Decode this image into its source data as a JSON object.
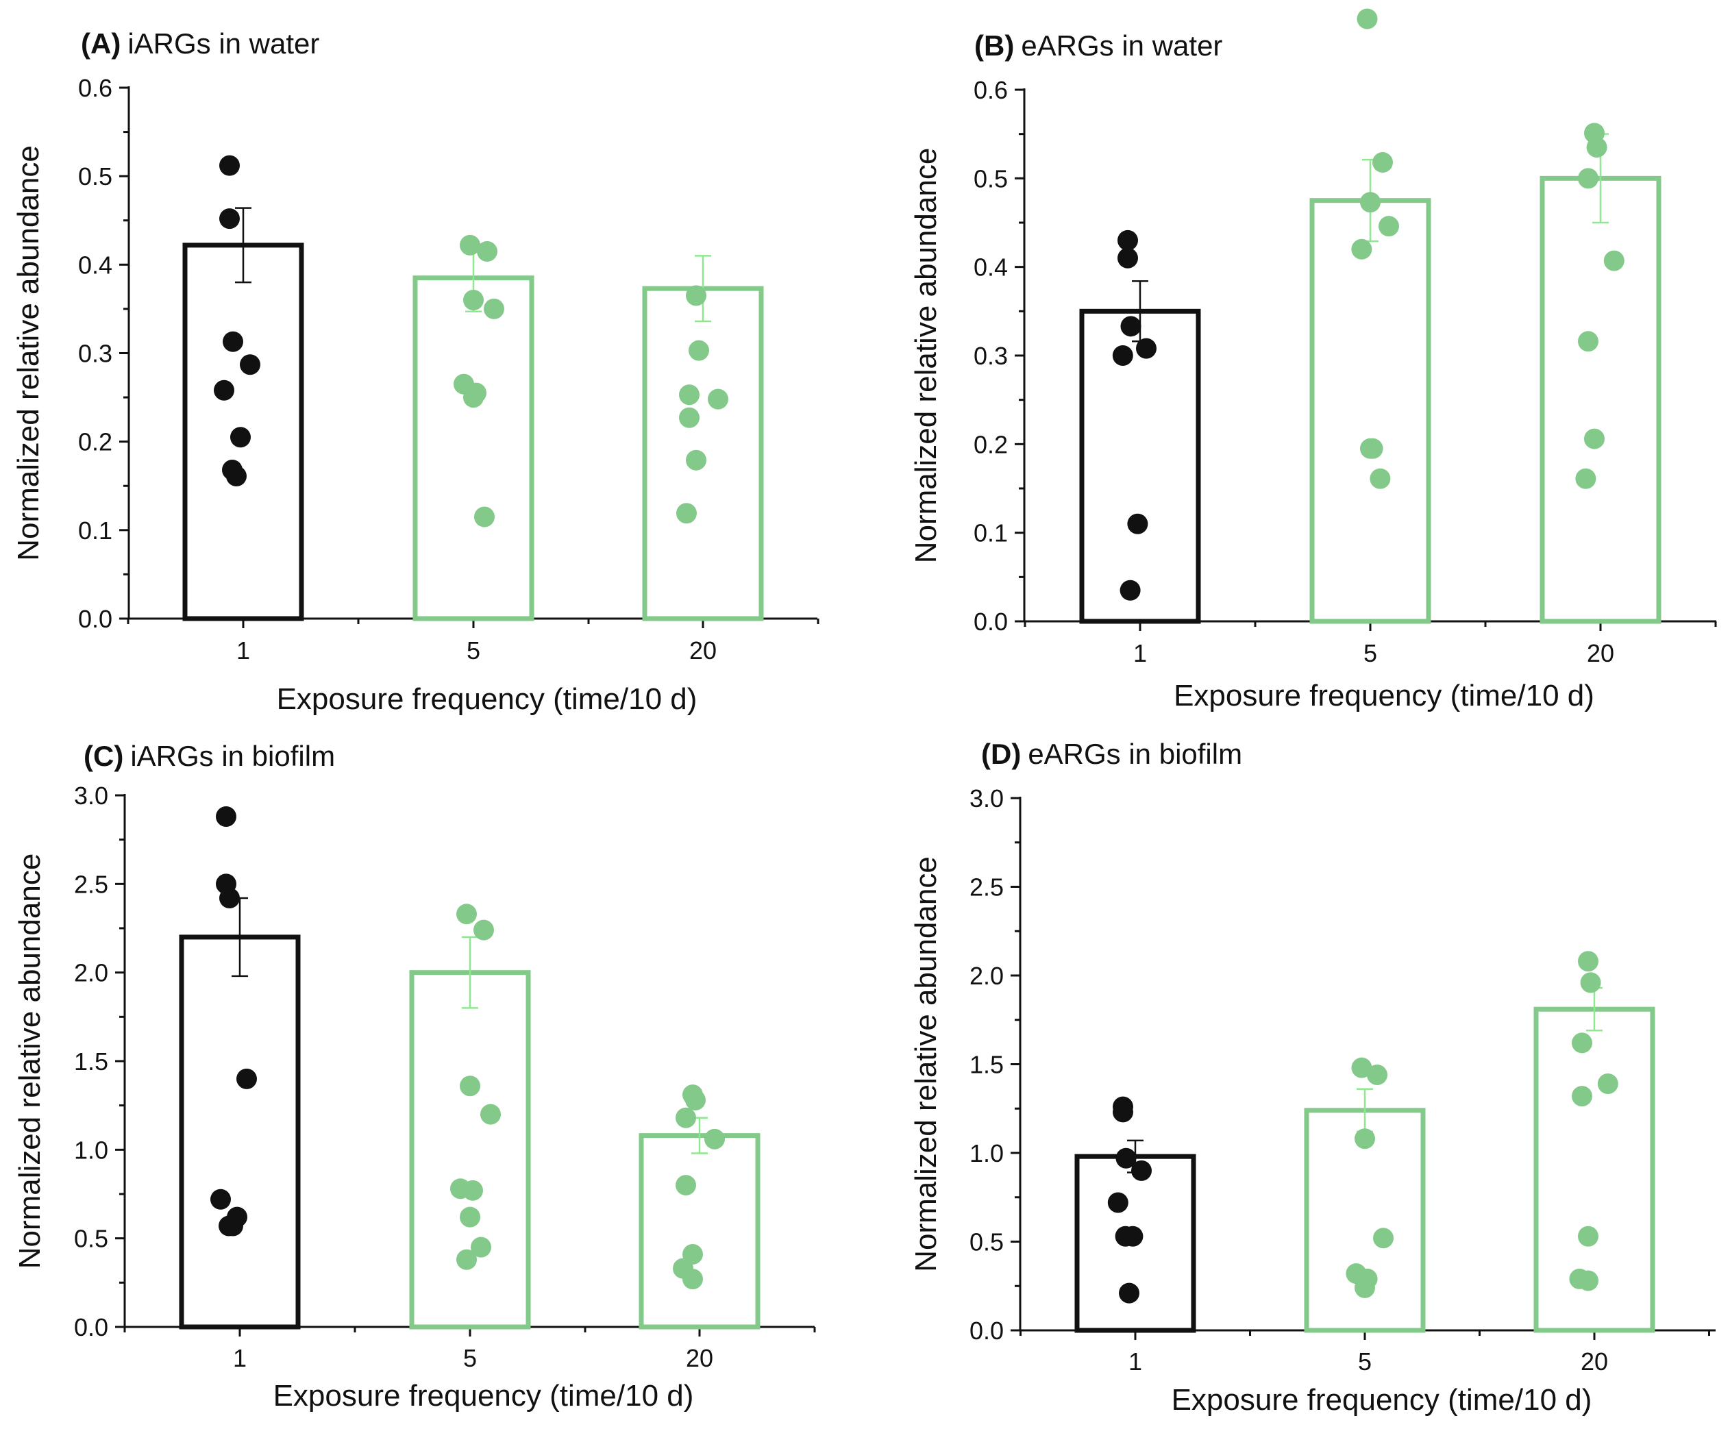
{
  "colors": {
    "black_group": "#111111",
    "green_group": "#83c98a",
    "green_errorbar": "#8fe88f"
  },
  "chart_data": [
    {
      "type": "bar",
      "panel": "(A)",
      "title": "iARGs in water",
      "xlabel": "Exposure frequency (time/10 d)",
      "ylabel": "Normalized relative abundance",
      "categories": [
        "1",
        "5",
        "20"
      ],
      "values": [
        0.422,
        0.385,
        0.373
      ],
      "error": [
        0.042,
        0.038,
        0.037
      ],
      "ylim": [
        0,
        0.6
      ],
      "yticks": [
        "0.0",
        "0.1",
        "0.2",
        "0.3",
        "0.4",
        "0.5",
        "0.6"
      ],
      "points": [
        [
          0.512,
          0.452,
          0.313,
          0.287,
          0.258,
          0.205,
          0.168,
          0.161
        ],
        [
          0.422,
          0.415,
          0.36,
          0.35,
          0.265,
          0.255,
          0.25,
          0.115
        ],
        [
          0.365,
          0.303,
          0.253,
          0.248,
          0.227,
          0.179,
          0.119
        ]
      ]
    },
    {
      "type": "bar",
      "panel": "(B)",
      "title": "eARGs in water",
      "xlabel": "Exposure frequency (time/10 d)",
      "ylabel": "Normalized relative abundance",
      "categories": [
        "1",
        "5",
        "20"
      ],
      "values": [
        0.35,
        0.475,
        0.5
      ],
      "error": [
        0.034,
        0.046,
        0.05
      ],
      "ylim": [
        0,
        0.6
      ],
      "yticks": [
        "0.0",
        "0.1",
        "0.2",
        "0.3",
        "0.4",
        "0.5",
        "0.6"
      ],
      "points": [
        [
          0.43,
          0.41,
          0.333,
          0.308,
          0.3,
          0.11,
          0.035
        ],
        [
          0.68,
          0.518,
          0.473,
          0.446,
          0.42,
          0.195,
          0.195,
          0.161
        ],
        [
          0.551,
          0.535,
          0.5,
          0.407,
          0.316,
          0.206,
          0.161
        ]
      ]
    },
    {
      "type": "bar",
      "panel": "(C)",
      "title": "iARGs in biofilm",
      "xlabel": "Exposure frequency (time/10 d)",
      "ylabel": "Normalized relative abundance",
      "categories": [
        "1",
        "5",
        "20"
      ],
      "values": [
        2.2,
        2.0,
        1.08
      ],
      "error": [
        0.22,
        0.2,
        0.1
      ],
      "ylim": [
        0,
        3.0
      ],
      "yticks": [
        "0.0",
        "0.5",
        "1.0",
        "1.5",
        "2.0",
        "2.5",
        "3.0"
      ],
      "points": [
        [
          2.88,
          2.5,
          2.42,
          1.4,
          0.72,
          0.62,
          0.57,
          0.57
        ],
        [
          2.33,
          2.24,
          1.36,
          1.2,
          0.78,
          0.77,
          0.62,
          0.45,
          0.38
        ],
        [
          1.31,
          1.28,
          1.18,
          1.06,
          0.8,
          0.41,
          0.33,
          0.27
        ]
      ]
    },
    {
      "type": "bar",
      "panel": "(D)",
      "title": "eARGs in biofilm",
      "xlabel": "Exposure frequency (time/10 d)",
      "ylabel": "Normalized relative abundance",
      "categories": [
        "1",
        "5",
        "20"
      ],
      "values": [
        0.98,
        1.24,
        1.81
      ],
      "error": [
        0.09,
        0.12,
        0.12
      ],
      "ylim": [
        0,
        3.0
      ],
      "yticks": [
        "0.0",
        "0.5",
        "1.0",
        "1.5",
        "2.0",
        "2.5",
        "3.0"
      ],
      "points": [
        [
          1.26,
          1.23,
          0.97,
          0.9,
          0.72,
          0.53,
          0.53,
          0.21
        ],
        [
          1.48,
          1.44,
          1.08,
          0.52,
          0.32,
          0.29,
          0.24
        ],
        [
          2.08,
          1.96,
          1.62,
          1.39,
          1.32,
          0.53,
          0.29,
          0.28
        ]
      ]
    }
  ]
}
